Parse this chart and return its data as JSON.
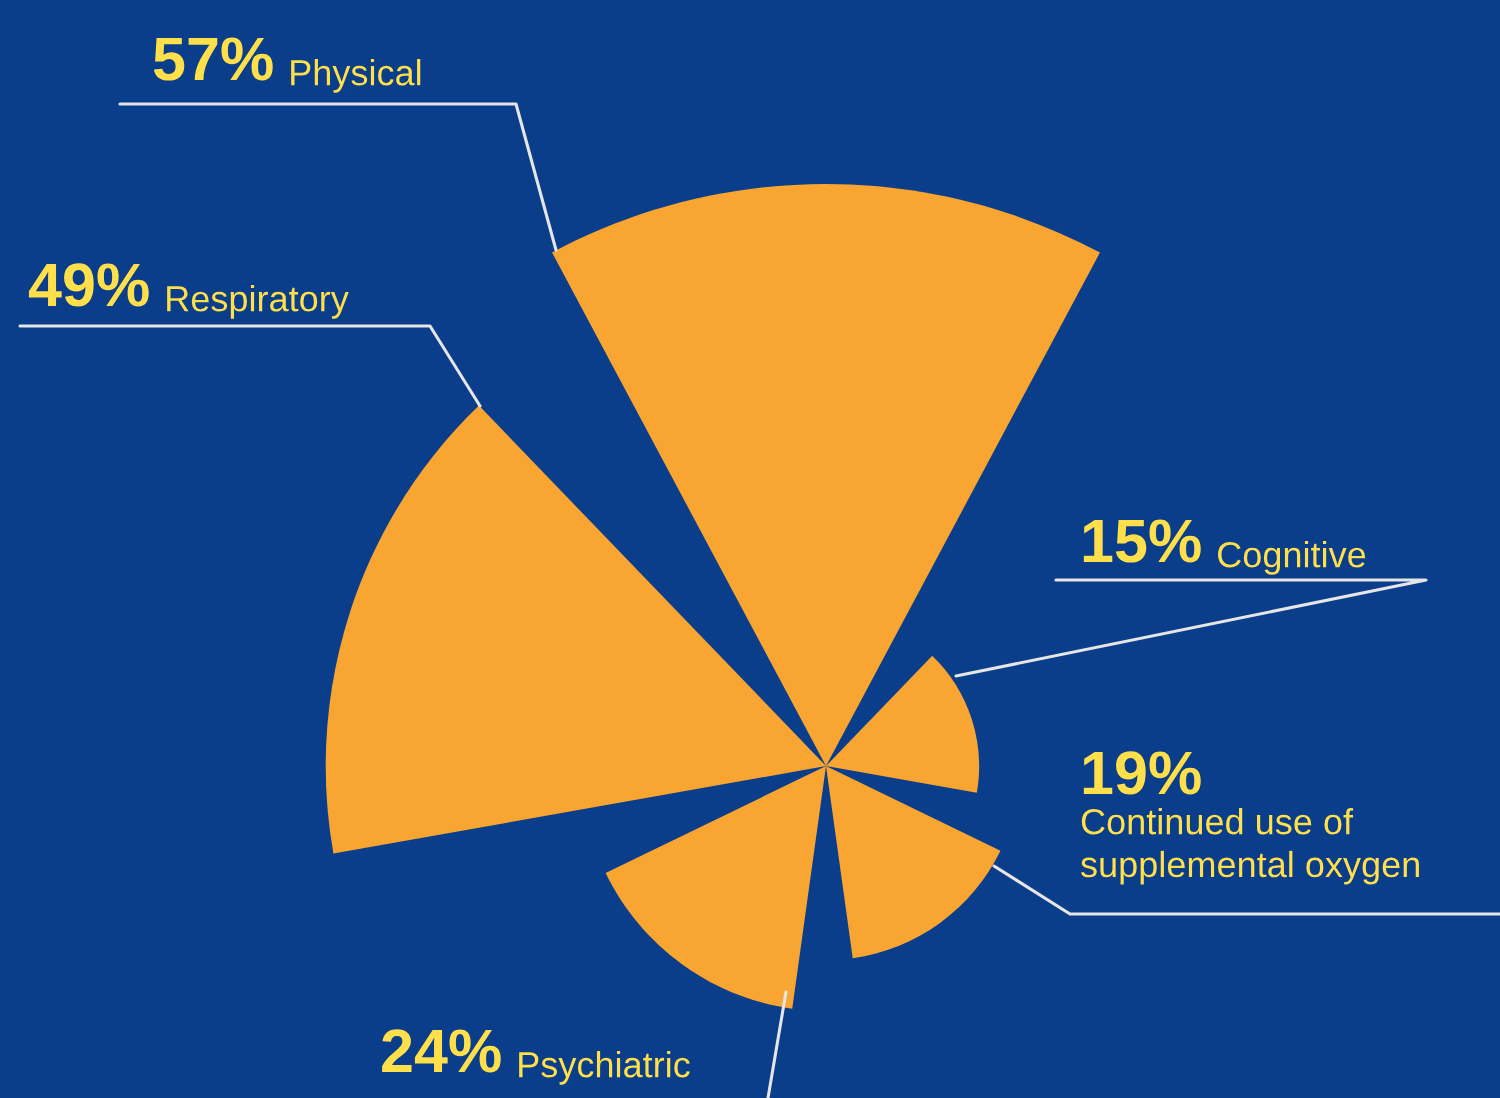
{
  "chart_data": {
    "type": "other",
    "categories": [
      "Physical",
      "Cognitive",
      "Continued use of\nsupplemental oxygen",
      "Psychiatric",
      "Respiratory"
    ],
    "values": [
      57,
      15,
      19,
      24,
      49
    ],
    "value_labels": [
      "57%",
      "15%",
      "19%",
      "24%",
      "49%"
    ],
    "color": "#f9a531"
  }
}
